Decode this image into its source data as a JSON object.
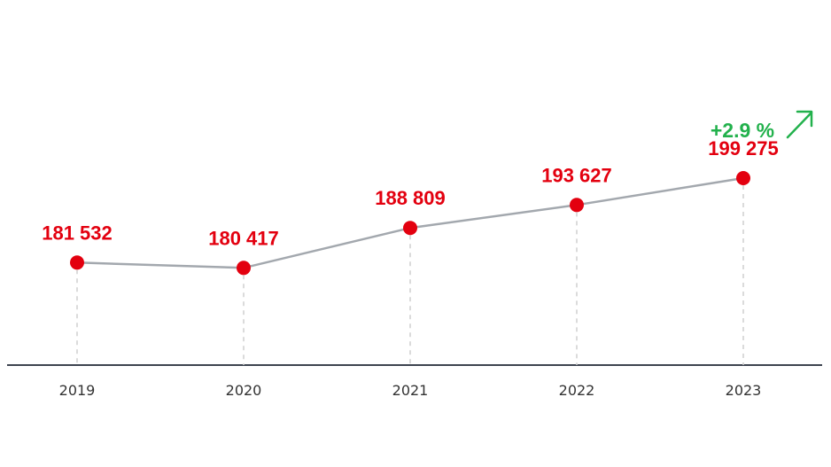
{
  "chart_data": {
    "type": "line",
    "x": [
      "2019",
      "2020",
      "2021",
      "2022",
      "2023"
    ],
    "values": [
      181532,
      180417,
      188809,
      193627,
      199275
    ],
    "value_labels": [
      "181 532",
      "180 417",
      "188 809",
      "193 627",
      "199 275"
    ],
    "ylim": [
      160000,
      205000
    ],
    "grid": false,
    "change": {
      "label": "+2.9 %",
      "direction": "up"
    },
    "colors": {
      "line": "#a3a8ae",
      "point": "#e3000f",
      "value_label": "#e3000f",
      "change": "#22b14c",
      "axis": "#3d4450",
      "drop_line": "#cfcfcf",
      "tick_label": "#333333"
    }
  }
}
